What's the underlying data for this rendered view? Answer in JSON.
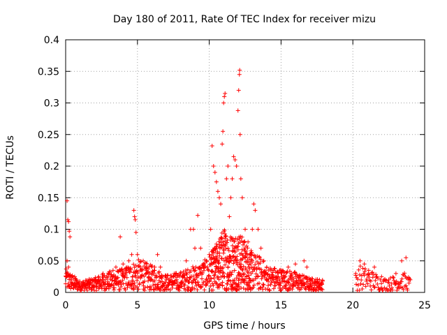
{
  "chart_data": {
    "type": "scatter",
    "title": "Day 180 of 2011, Rate Of TEC Index for receiver mizu",
    "xlabel": "GPS time / hours",
    "ylabel": "ROTI / TECUs",
    "xlim": [
      0,
      25
    ],
    "ylim": [
      0,
      0.4
    ],
    "xticks": [
      0,
      5,
      10,
      15,
      20,
      25
    ],
    "xtick_labels": [
      "0",
      "5",
      "10",
      "15",
      "20",
      "25"
    ],
    "yticks": [
      0,
      0.05,
      0.1,
      0.15,
      0.2,
      0.25,
      0.3,
      0.35,
      0.4
    ],
    "ytick_labels": [
      "0",
      "0.05",
      "0.1",
      "0.15",
      "0.2",
      "0.25",
      "0.3",
      "0.35",
      "0.4"
    ],
    "grid": true,
    "marker": "+",
    "color": "#ff0000",
    "series": [
      {
        "name": "ROTI",
        "points": [
          [
            0.1,
            0.145
          ],
          [
            0.15,
            0.115
          ],
          [
            0.2,
            0.112
          ],
          [
            0.25,
            0.097
          ],
          [
            0.3,
            0.088
          ],
          [
            0.05,
            0.03
          ],
          [
            0.1,
            0.05
          ],
          [
            0.2,
            0.04
          ],
          [
            0.3,
            0.025
          ],
          [
            0.4,
            0.02
          ],
          [
            0.5,
            0.015
          ],
          [
            0.7,
            0.012
          ],
          [
            1.0,
            0.01
          ],
          [
            1.3,
            0.012
          ],
          [
            1.6,
            0.015
          ],
          [
            2.0,
            0.02
          ],
          [
            2.3,
            0.025
          ],
          [
            2.6,
            0.03
          ],
          [
            3.0,
            0.028
          ],
          [
            3.3,
            0.035
          ],
          [
            3.5,
            0.04
          ],
          [
            3.8,
            0.088
          ],
          [
            4.0,
            0.045
          ],
          [
            4.2,
            0.038
          ],
          [
            4.4,
            0.05
          ],
          [
            4.6,
            0.06
          ],
          [
            4.75,
            0.13
          ],
          [
            4.8,
            0.12
          ],
          [
            4.85,
            0.115
          ],
          [
            4.9,
            0.095
          ],
          [
            5.0,
            0.06
          ],
          [
            5.2,
            0.04
          ],
          [
            5.4,
            0.05
          ],
          [
            5.6,
            0.03
          ],
          [
            5.8,
            0.025
          ],
          [
            6.0,
            0.03
          ],
          [
            6.2,
            0.04
          ],
          [
            6.4,
            0.06
          ],
          [
            6.6,
            0.04
          ],
          [
            7.0,
            0.02
          ],
          [
            7.5,
            0.025
          ],
          [
            8.0,
            0.03
          ],
          [
            8.4,
            0.05
          ],
          [
            8.7,
            0.1
          ],
          [
            8.9,
            0.1
          ],
          [
            9.0,
            0.07
          ],
          [
            9.2,
            0.122
          ],
          [
            9.4,
            0.07
          ],
          [
            9.6,
            0.04
          ],
          [
            9.8,
            0.05
          ],
          [
            10.0,
            0.06
          ],
          [
            10.1,
            0.1
          ],
          [
            10.2,
            0.232
          ],
          [
            10.3,
            0.2
          ],
          [
            10.4,
            0.19
          ],
          [
            10.5,
            0.175
          ],
          [
            10.6,
            0.16
          ],
          [
            10.7,
            0.15
          ],
          [
            10.8,
            0.14
          ],
          [
            10.9,
            0.235
          ],
          [
            10.95,
            0.255
          ],
          [
            11.0,
            0.3
          ],
          [
            11.05,
            0.31
          ],
          [
            11.1,
            0.315
          ],
          [
            11.2,
            0.18
          ],
          [
            11.3,
            0.2
          ],
          [
            11.4,
            0.12
          ],
          [
            11.5,
            0.15
          ],
          [
            11.6,
            0.18
          ],
          [
            11.7,
            0.215
          ],
          [
            11.8,
            0.21
          ],
          [
            11.9,
            0.2
          ],
          [
            12.0,
            0.288
          ],
          [
            12.05,
            0.32
          ],
          [
            12.1,
            0.345
          ],
          [
            12.12,
            0.352
          ],
          [
            12.15,
            0.25
          ],
          [
            12.2,
            0.18
          ],
          [
            12.3,
            0.15
          ],
          [
            12.5,
            0.1
          ],
          [
            12.7,
            0.08
          ],
          [
            12.9,
            0.06
          ],
          [
            13.0,
            0.1
          ],
          [
            13.1,
            0.14
          ],
          [
            13.2,
            0.13
          ],
          [
            13.4,
            0.1
          ],
          [
            13.6,
            0.07
          ],
          [
            13.8,
            0.05
          ],
          [
            14.0,
            0.04
          ],
          [
            14.5,
            0.035
          ],
          [
            15.0,
            0.03
          ],
          [
            15.5,
            0.04
          ],
          [
            16.0,
            0.045
          ],
          [
            16.6,
            0.05
          ],
          [
            16.8,
            0.04
          ],
          [
            17.0,
            0.02
          ],
          [
            17.5,
            0.015
          ],
          [
            17.9,
            0.018
          ],
          [
            20.2,
            0.03
          ],
          [
            20.5,
            0.05
          ],
          [
            20.8,
            0.045
          ],
          [
            21.1,
            0.035
          ],
          [
            21.5,
            0.04
          ],
          [
            22.0,
            0.025
          ],
          [
            22.5,
            0.02
          ],
          [
            23.0,
            0.03
          ],
          [
            23.4,
            0.05
          ],
          [
            23.7,
            0.055
          ],
          [
            24.0,
            0.02
          ]
        ]
      }
    ],
    "envelope": {
      "x": [
        0,
        1,
        2,
        3,
        4,
        5,
        6,
        7,
        8,
        9,
        9.5,
        10,
        10.5,
        11,
        11.5,
        12,
        12.5,
        13,
        13.5,
        14,
        15,
        16,
        17,
        17.9
      ],
      "y_upper": [
        0.035,
        0.015,
        0.02,
        0.03,
        0.035,
        0.05,
        0.04,
        0.025,
        0.03,
        0.04,
        0.045,
        0.055,
        0.075,
        0.1,
        0.09,
        0.095,
        0.08,
        0.06,
        0.055,
        0.04,
        0.035,
        0.03,
        0.02,
        0.018
      ],
      "x2": [
        20.2,
        20.5,
        21,
        21.5,
        22,
        22.5,
        23,
        23.5,
        24
      ],
      "y2_upper": [
        0.03,
        0.04,
        0.035,
        0.03,
        0.02,
        0.02,
        0.025,
        0.03,
        0.02
      ]
    }
  }
}
